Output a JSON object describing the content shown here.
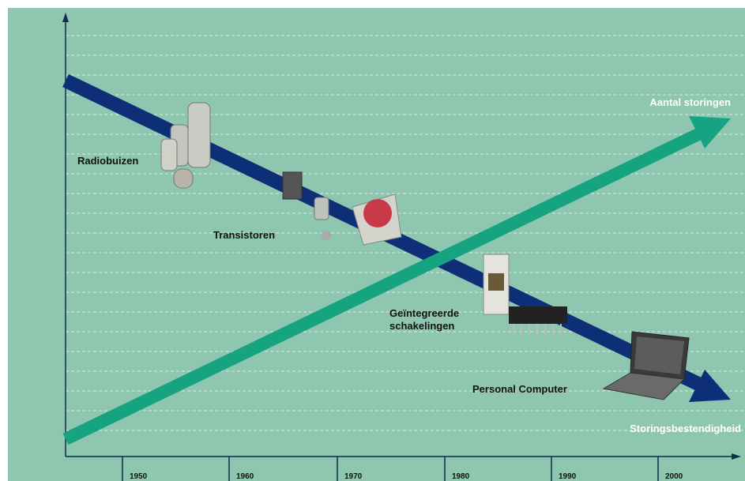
{
  "labels": {
    "failures": "Aantal storingen",
    "reliability": "Storingsbestendigheid",
    "tubes": "Radiobuizen",
    "transistors": "Transistoren",
    "ic_line1": "Geïntegreerde",
    "ic_line2": "schakelingen",
    "pc": "Personal Computer"
  },
  "axis": {
    "years": [
      "1950",
      "1960",
      "1970",
      "1980",
      "1990",
      "2000"
    ]
  }
}
